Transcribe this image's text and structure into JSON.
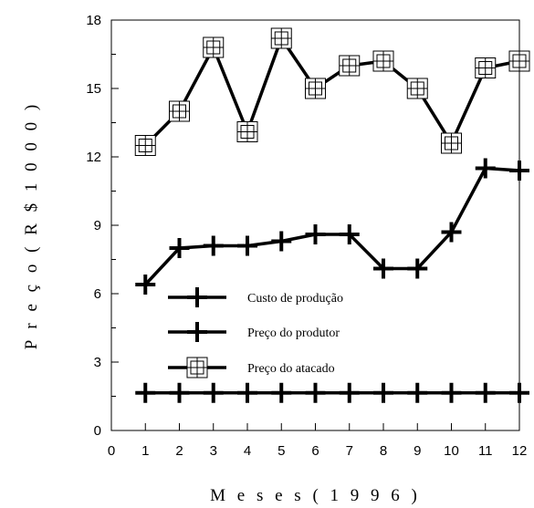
{
  "chart_data": {
    "type": "line",
    "title": "",
    "xlabel": "M e s e s ( 1 9 9 6 )",
    "ylabel": "P r e ç o ( R $  1 0 0 0 )",
    "x": [
      1,
      2,
      3,
      4,
      5,
      6,
      7,
      8,
      9,
      10,
      11,
      12
    ],
    "xlim": [
      0,
      12
    ],
    "ylim": [
      0,
      18
    ],
    "xticks": [
      "0",
      "1",
      "2",
      "3",
      "4",
      "5",
      "6",
      "7",
      "8",
      "9",
      "10",
      "11",
      "12"
    ],
    "yticks": [
      "0",
      "3",
      "6",
      "9",
      "12",
      "15",
      "18"
    ],
    "grid": false,
    "legend_position": "lower-left",
    "series": [
      {
        "name": "Custo de produção",
        "marker": "plus",
        "values": [
          1.65,
          1.65,
          1.65,
          1.65,
          1.65,
          1.65,
          1.65,
          1.65,
          1.65,
          1.65,
          1.65,
          1.65
        ]
      },
      {
        "name": "Preço do produtor",
        "marker": "plus",
        "values": [
          6.4,
          8.0,
          8.1,
          8.1,
          8.3,
          8.6,
          8.6,
          7.1,
          7.1,
          8.7,
          11.5,
          11.4
        ]
      },
      {
        "name": "Preço do atacado",
        "marker": "boxed-plus",
        "values": [
          12.5,
          14.0,
          16.8,
          13.1,
          17.2,
          15.0,
          16.0,
          16.2,
          15.0,
          12.6,
          15.9,
          16.2
        ]
      }
    ],
    "colors": {
      "line": "#000000",
      "background": "#ffffff"
    }
  }
}
